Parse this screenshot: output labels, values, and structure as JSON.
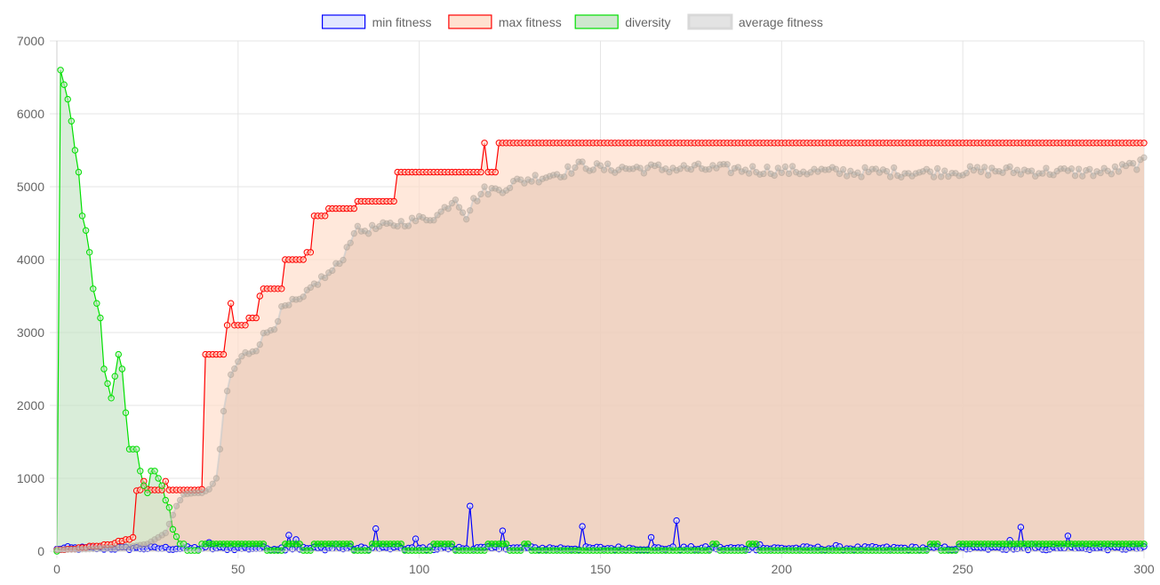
{
  "chart_data": {
    "type": "line",
    "xlim": [
      0,
      300
    ],
    "ylim": [
      0,
      7000
    ],
    "x_ticks": [
      "0",
      "50",
      "100",
      "150",
      "200",
      "250",
      "300"
    ],
    "y_ticks": [
      "0",
      "1000",
      "2000",
      "3000",
      "4000",
      "5000",
      "6000",
      "7000"
    ],
    "grid": true,
    "legend_position": "top-center",
    "series": [
      {
        "name": "min fitness",
        "border_color": "#0000ff",
        "fill_color": "#dde3ff",
        "filled": false,
        "anchors": [
          [
            0,
            30
          ],
          [
            30,
            40
          ],
          [
            42,
            120
          ],
          [
            60,
            50
          ],
          [
            64,
            220
          ],
          [
            66,
            160
          ],
          [
            88,
            310
          ],
          [
            99,
            170
          ],
          [
            114,
            620
          ],
          [
            123,
            280
          ],
          [
            145,
            340
          ],
          [
            164,
            190
          ],
          [
            171,
            420
          ],
          [
            194,
            90
          ],
          [
            215,
            80
          ],
          [
            263,
            150
          ],
          [
            266,
            330
          ],
          [
            269,
            100
          ],
          [
            279,
            210
          ],
          [
            300,
            40
          ]
        ],
        "spikes": [
          [
            42,
            120
          ],
          [
            64,
            220
          ],
          [
            66,
            160
          ],
          [
            77,
            100
          ],
          [
            88,
            310
          ],
          [
            99,
            170
          ],
          [
            114,
            620
          ],
          [
            123,
            280
          ],
          [
            145,
            340
          ],
          [
            164,
            190
          ],
          [
            171,
            420
          ],
          [
            194,
            90
          ],
          [
            215,
            80
          ],
          [
            263,
            150
          ],
          [
            266,
            330
          ],
          [
            269,
            100
          ],
          [
            279,
            210
          ]
        ],
        "base": 40,
        "noise": 25
      },
      {
        "name": "max fitness",
        "border_color": "#ff0000",
        "fill_color": "#ffdcc8",
        "filled": true,
        "steps": [
          [
            0,
            20
          ],
          [
            3,
            30
          ],
          [
            6,
            50
          ],
          [
            9,
            70
          ],
          [
            13,
            90
          ],
          [
            16,
            110
          ],
          [
            17,
            140
          ],
          [
            19,
            160
          ],
          [
            21,
            190
          ],
          [
            22,
            830
          ],
          [
            23,
            840
          ],
          [
            24,
            960
          ],
          [
            25,
            850
          ],
          [
            26,
            840
          ],
          [
            30,
            960
          ],
          [
            31,
            840
          ],
          [
            40,
            850
          ],
          [
            41,
            2700
          ],
          [
            47,
            3100
          ],
          [
            48,
            3400
          ],
          [
            49,
            3100
          ],
          [
            53,
            3200
          ],
          [
            56,
            3500
          ],
          [
            57,
            3600
          ],
          [
            63,
            4000
          ],
          [
            69,
            4100
          ],
          [
            71,
            4600
          ],
          [
            75,
            4700
          ],
          [
            83,
            4800
          ],
          [
            94,
            5200
          ],
          [
            118,
            5600
          ],
          [
            119,
            5200
          ],
          [
            122,
            5600
          ],
          [
            300,
            5600
          ]
        ]
      },
      {
        "name": "diversity",
        "border_color": "#00e000",
        "fill_color": "#c5e3c5",
        "filled": true,
        "anchors": [
          [
            0,
            0
          ],
          [
            1,
            6600
          ],
          [
            2,
            6400
          ],
          [
            3,
            6200
          ],
          [
            4,
            5900
          ],
          [
            5,
            5500
          ],
          [
            6,
            5200
          ],
          [
            7,
            4600
          ],
          [
            8,
            4400
          ],
          [
            9,
            4100
          ],
          [
            10,
            3600
          ],
          [
            11,
            3400
          ],
          [
            12,
            3200
          ],
          [
            13,
            2500
          ],
          [
            14,
            2300
          ],
          [
            15,
            2100
          ],
          [
            16,
            2400
          ],
          [
            17,
            2700
          ],
          [
            18,
            2500
          ],
          [
            19,
            1900
          ],
          [
            20,
            1400
          ],
          [
            21,
            1400
          ],
          [
            22,
            1400
          ],
          [
            23,
            1100
          ],
          [
            24,
            900
          ],
          [
            25,
            800
          ],
          [
            26,
            1100
          ],
          [
            27,
            1100
          ],
          [
            28,
            1000
          ],
          [
            29,
            900
          ],
          [
            30,
            700
          ],
          [
            31,
            600
          ],
          [
            32,
            300
          ],
          [
            33,
            200
          ],
          [
            34,
            100
          ],
          [
            35,
            100
          ],
          [
            36,
            10
          ],
          [
            39,
            10
          ],
          [
            40,
            100
          ],
          [
            300,
            100
          ]
        ],
        "dips": [
          [
            35,
            38
          ],
          [
            58,
            62
          ],
          [
            68,
            70
          ],
          [
            82,
            86
          ],
          [
            96,
            103
          ],
          [
            110,
            118
          ],
          [
            125,
            128
          ],
          [
            131,
            180
          ],
          [
            183,
            190
          ],
          [
            194,
            240
          ],
          [
            244,
            248
          ]
        ],
        "dip_value": 10
      },
      {
        "name": "average fitness",
        "border_color": "#cccccc",
        "fill_color": "#e8cab8",
        "filled": true,
        "anchors": [
          [
            0,
            20
          ],
          [
            10,
            30
          ],
          [
            20,
            60
          ],
          [
            25,
            100
          ],
          [
            30,
            250
          ],
          [
            33,
            620
          ],
          [
            35,
            780
          ],
          [
            38,
            800
          ],
          [
            40,
            800
          ],
          [
            42,
            850
          ],
          [
            44,
            1000
          ],
          [
            45,
            1400
          ],
          [
            46,
            1900
          ],
          [
            47,
            2200
          ],
          [
            48,
            2400
          ],
          [
            50,
            2600
          ],
          [
            52,
            2700
          ],
          [
            55,
            2800
          ],
          [
            57,
            2950
          ],
          [
            60,
            3100
          ],
          [
            62,
            3300
          ],
          [
            65,
            3400
          ],
          [
            68,
            3450
          ],
          [
            70,
            3600
          ],
          [
            72,
            3700
          ],
          [
            75,
            3800
          ],
          [
            78,
            3950
          ],
          [
            80,
            4150
          ],
          [
            82,
            4400
          ],
          [
            85,
            4400
          ],
          [
            90,
            4450
          ],
          [
            95,
            4500
          ],
          [
            100,
            4550
          ],
          [
            105,
            4600
          ],
          [
            108,
            4750
          ],
          [
            110,
            4850
          ],
          [
            113,
            4600
          ],
          [
            115,
            4800
          ],
          [
            118,
            4950
          ],
          [
            121,
            4950
          ],
          [
            124,
            5000
          ],
          [
            126,
            5050
          ],
          [
            130,
            5100
          ],
          [
            135,
            5150
          ],
          [
            140,
            5200
          ],
          [
            145,
            5300
          ],
          [
            150,
            5250
          ],
          [
            160,
            5250
          ],
          [
            170,
            5250
          ],
          [
            180,
            5250
          ],
          [
            200,
            5220
          ],
          [
            220,
            5200
          ],
          [
            240,
            5200
          ],
          [
            260,
            5220
          ],
          [
            280,
            5200
          ],
          [
            290,
            5200
          ],
          [
            298,
            5300
          ],
          [
            300,
            5330
          ]
        ],
        "noise": 70,
        "noise_from": 120
      }
    ]
  }
}
